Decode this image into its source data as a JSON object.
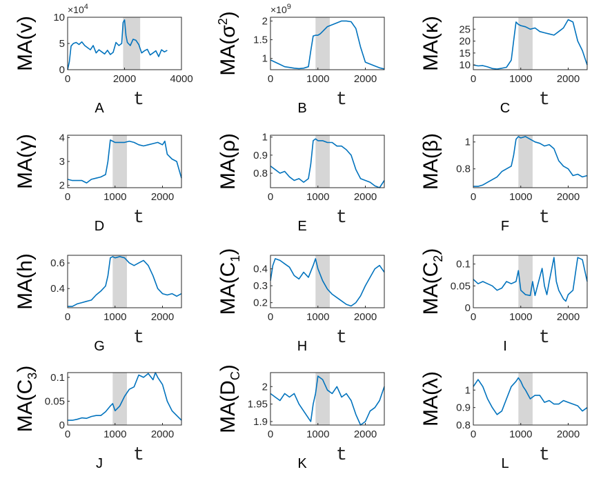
{
  "chart_data": [
    {
      "id": "A",
      "type": "line",
      "panel_label": "A",
      "ylabel": "MA(v)",
      "xlabel": "t",
      "xlim": [
        0,
        4000
      ],
      "ylim": [
        0,
        10
      ],
      "y_multiplier": "×10^4",
      "xticks": [
        0,
        2000,
        4000
      ],
      "xtick_labels": [
        "0",
        "2000",
        "4000"
      ],
      "yticks": [
        0,
        5,
        10
      ],
      "ytick_labels": [
        "0",
        "5",
        "10"
      ],
      "shaded_region": [
        1950,
        2550
      ],
      "x": [
        0,
        60,
        120,
        200,
        300,
        400,
        500,
        600,
        700,
        800,
        900,
        1000,
        1100,
        1200,
        1300,
        1400,
        1500,
        1600,
        1700,
        1800,
        1900,
        1950,
        2000,
        2050,
        2100,
        2200,
        2300,
        2400,
        2500,
        2600,
        2700,
        2800,
        2900,
        3000,
        3100,
        3200,
        3300,
        3400,
        3500
      ],
      "values": [
        0,
        1.5,
        4.5,
        5,
        5.2,
        4.8,
        5.3,
        4.6,
        4.2,
        3.8,
        4.6,
        3.2,
        3.8,
        3.4,
        3.0,
        3.7,
        2.9,
        3.3,
        5.2,
        4.6,
        5.0,
        9.0,
        9.5,
        6.5,
        5.2,
        4.6,
        5.8,
        5.6,
        4.8,
        3.2,
        3.6,
        3.9,
        2.8,
        3.2,
        3.6,
        2.5,
        3.8,
        3.4,
        3.7
      ]
    },
    {
      "id": "B",
      "type": "line",
      "panel_label": "B",
      "ylabel": "MA(σ²)",
      "xlabel": "t",
      "xlim": [
        0,
        2400
      ],
      "ylim": [
        0.7,
        2.1
      ],
      "y_multiplier": "×10^9",
      "xticks": [
        0,
        1000,
        2000
      ],
      "xtick_labels": [
        "0",
        "1000",
        "2000"
      ],
      "yticks": [
        1,
        1.5,
        2
      ],
      "ytick_labels": [
        "1",
        "1.5",
        "2"
      ],
      "shaded_region": [
        950,
        1250
      ],
      "x": [
        0,
        100,
        200,
        300,
        400,
        500,
        600,
        700,
        800,
        850,
        900,
        950,
        1000,
        1050,
        1100,
        1200,
        1300,
        1400,
        1500,
        1600,
        1700,
        1800,
        1900,
        2000,
        2100,
        2200,
        2300,
        2400
      ],
      "values": [
        0.96,
        0.9,
        0.84,
        0.78,
        0.76,
        0.74,
        0.73,
        0.74,
        0.78,
        1.2,
        1.6,
        1.62,
        1.62,
        1.66,
        1.72,
        1.85,
        1.9,
        1.95,
        2.0,
        2.0,
        1.98,
        1.8,
        1.3,
        0.9,
        0.85,
        0.8,
        0.75,
        0.72
      ]
    },
    {
      "id": "C",
      "type": "line",
      "panel_label": "C",
      "ylabel": "MA(κ)",
      "xlabel": "t",
      "xlim": [
        0,
        2400
      ],
      "ylim": [
        8,
        30
      ],
      "xticks": [
        0,
        1000,
        2000
      ],
      "xtick_labels": [
        "0",
        "1000",
        "2000"
      ],
      "yticks": [
        10,
        15,
        20,
        25
      ],
      "ytick_labels": [
        "10",
        "15",
        "20",
        "25"
      ],
      "shaded_region": [
        950,
        1250
      ],
      "x": [
        0,
        100,
        200,
        300,
        400,
        500,
        600,
        700,
        800,
        850,
        900,
        950,
        1000,
        1100,
        1200,
        1300,
        1400,
        1500,
        1600,
        1700,
        1800,
        1900,
        2000,
        2100,
        2200,
        2300,
        2400
      ],
      "values": [
        10,
        9.6,
        9.7,
        9.2,
        8.5,
        8.3,
        8.6,
        9.0,
        12,
        20,
        28,
        27,
        26.5,
        26,
        25,
        25.5,
        24,
        23.5,
        23,
        22.5,
        24,
        25.5,
        29,
        28,
        20,
        16,
        10
      ]
    },
    {
      "id": "D",
      "type": "line",
      "panel_label": "D",
      "ylabel": "MA(γ)",
      "xlabel": "t",
      "xlim": [
        0,
        2400
      ],
      "ylim": [
        1.9,
        4.1
      ],
      "xticks": [
        0,
        1000,
        2000
      ],
      "xtick_labels": [
        "0",
        "1000",
        "2000"
      ],
      "yticks": [
        2,
        3,
        4
      ],
      "ytick_labels": [
        "2",
        "3",
        "4"
      ],
      "shaded_region": [
        950,
        1250
      ],
      "x": [
        0,
        100,
        200,
        300,
        400,
        500,
        600,
        700,
        800,
        850,
        900,
        950,
        1000,
        1100,
        1200,
        1300,
        1400,
        1500,
        1600,
        1700,
        1800,
        1900,
        2000,
        2050,
        2100,
        2200,
        2300,
        2400
      ],
      "values": [
        2.25,
        2.2,
        2.2,
        2.2,
        2.1,
        2.25,
        2.3,
        2.35,
        2.45,
        3.0,
        3.9,
        3.85,
        3.8,
        3.8,
        3.8,
        3.85,
        3.8,
        3.7,
        3.65,
        3.7,
        3.75,
        3.8,
        3.7,
        3.85,
        3.3,
        3.1,
        3.0,
        2.3
      ]
    },
    {
      "id": "E",
      "type": "line",
      "panel_label": "E",
      "ylabel": "MA(ρ)",
      "xlabel": "t",
      "xlim": [
        0,
        2400
      ],
      "ylim": [
        0.72,
        1.01
      ],
      "xticks": [
        0,
        1000,
        2000
      ],
      "xtick_labels": [
        "0",
        "1000",
        "2000"
      ],
      "yticks": [
        0.8,
        0.9,
        1
      ],
      "ytick_labels": [
        "0.8",
        "0.9",
        "1"
      ],
      "shaded_region": [
        950,
        1250
      ],
      "x": [
        0,
        100,
        200,
        300,
        400,
        500,
        600,
        700,
        800,
        850,
        900,
        950,
        1000,
        1100,
        1200,
        1300,
        1400,
        1500,
        1600,
        1700,
        1800,
        1900,
        2000,
        2100,
        2200,
        2300,
        2400
      ],
      "values": [
        0.84,
        0.82,
        0.8,
        0.81,
        0.78,
        0.76,
        0.77,
        0.75,
        0.77,
        0.85,
        0.98,
        0.99,
        0.98,
        0.98,
        0.97,
        0.97,
        0.95,
        0.95,
        0.93,
        0.9,
        0.82,
        0.77,
        0.76,
        0.75,
        0.73,
        0.72,
        0.76
      ]
    },
    {
      "id": "F",
      "type": "line",
      "panel_label": "F",
      "ylabel": "MA(β)",
      "xlabel": "t",
      "xlim": [
        0,
        2400
      ],
      "ylim": [
        0.66,
        1.05
      ],
      "xticks": [
        0,
        1000,
        2000
      ],
      "xtick_labels": [
        "0",
        "1000",
        "2000"
      ],
      "yticks": [
        0.8,
        1
      ],
      "ytick_labels": [
        "0.8",
        "1"
      ],
      "shaded_region": [
        950,
        1250
      ],
      "x": [
        0,
        100,
        200,
        300,
        400,
        500,
        600,
        700,
        800,
        850,
        900,
        950,
        1000,
        1100,
        1200,
        1300,
        1400,
        1500,
        1600,
        1700,
        1800,
        1900,
        2000,
        2100,
        2200,
        2300,
        2400
      ],
      "values": [
        0.67,
        0.67,
        0.68,
        0.7,
        0.72,
        0.74,
        0.78,
        0.8,
        0.82,
        0.9,
        1.02,
        1.04,
        1.03,
        1.04,
        1.02,
        1.0,
        0.99,
        0.97,
        0.98,
        0.95,
        0.86,
        0.82,
        0.8,
        0.75,
        0.76,
        0.74,
        0.75
      ]
    },
    {
      "id": "G",
      "type": "line",
      "panel_label": "G",
      "ylabel": "MA(h)",
      "xlabel": "t",
      "xlim": [
        0,
        2400
      ],
      "ylim": [
        0.25,
        0.66
      ],
      "xticks": [
        0,
        1000,
        2000
      ],
      "xtick_labels": [
        "0",
        "1000",
        "2000"
      ],
      "yticks": [
        0.4,
        0.6
      ],
      "ytick_labels": [
        "0.4",
        "0.6"
      ],
      "shaded_region": [
        950,
        1250
      ],
      "x": [
        0,
        100,
        200,
        300,
        400,
        500,
        600,
        700,
        800,
        850,
        900,
        950,
        1000,
        1100,
        1200,
        1300,
        1400,
        1500,
        1600,
        1700,
        1800,
        1900,
        2000,
        2100,
        2200,
        2300,
        2400
      ],
      "values": [
        0.26,
        0.26,
        0.28,
        0.29,
        0.3,
        0.31,
        0.35,
        0.38,
        0.42,
        0.5,
        0.64,
        0.65,
        0.64,
        0.65,
        0.64,
        0.6,
        0.58,
        0.6,
        0.62,
        0.58,
        0.5,
        0.4,
        0.36,
        0.35,
        0.36,
        0.34,
        0.36
      ]
    },
    {
      "id": "H",
      "type": "line",
      "panel_label": "H",
      "ylabel": "MA(C₁)",
      "xlabel": "t",
      "xlim": [
        0,
        2400
      ],
      "ylim": [
        0.17,
        0.48
      ],
      "xticks": [
        0,
        1000,
        2000
      ],
      "xtick_labels": [
        "0",
        "1000",
        "2000"
      ],
      "yticks": [
        0.2,
        0.3,
        0.4
      ],
      "ytick_labels": [
        "0.2",
        "0.3",
        "0.4"
      ],
      "shaded_region": [
        950,
        1250
      ],
      "x": [
        0,
        50,
        100,
        200,
        300,
        400,
        500,
        600,
        700,
        800,
        900,
        950,
        1000,
        1100,
        1200,
        1300,
        1400,
        1500,
        1600,
        1700,
        1800,
        1900,
        2000,
        2100,
        2200,
        2300,
        2400
      ],
      "values": [
        0.33,
        0.42,
        0.46,
        0.45,
        0.43,
        0.41,
        0.36,
        0.34,
        0.38,
        0.35,
        0.42,
        0.46,
        0.4,
        0.33,
        0.28,
        0.25,
        0.23,
        0.21,
        0.19,
        0.18,
        0.2,
        0.24,
        0.3,
        0.35,
        0.4,
        0.42,
        0.38
      ]
    },
    {
      "id": "I",
      "type": "line",
      "panel_label": "I",
      "ylabel": "MA(C₂)",
      "xlabel": "t",
      "xlim": [
        0,
        2400
      ],
      "ylim": [
        0,
        0.12
      ],
      "xticks": [
        0,
        1000,
        2000
      ],
      "xtick_labels": [
        "0",
        "1000",
        "2000"
      ],
      "yticks": [
        0,
        0.05,
        0.1
      ],
      "ytick_labels": [
        "0",
        "0.05",
        "0.1"
      ],
      "shaded_region": [
        950,
        1250
      ],
      "x": [
        0,
        100,
        200,
        300,
        400,
        500,
        600,
        700,
        800,
        900,
        950,
        1000,
        1100,
        1200,
        1250,
        1300,
        1400,
        1450,
        1500,
        1550,
        1600,
        1700,
        1750,
        1800,
        1900,
        1950,
        2000,
        2100,
        2200,
        2300,
        2400
      ],
      "values": [
        0.065,
        0.055,
        0.06,
        0.055,
        0.05,
        0.04,
        0.045,
        0.06,
        0.055,
        0.06,
        0.085,
        0.04,
        0.03,
        0.028,
        0.06,
        0.028,
        0.07,
        0.09,
        0.05,
        0.03,
        0.06,
        0.115,
        0.06,
        0.04,
        0.02,
        0.015,
        0.03,
        0.04,
        0.115,
        0.11,
        0.06
      ]
    },
    {
      "id": "J",
      "type": "line",
      "panel_label": "J",
      "ylabel": "MA(C₃)",
      "xlabel": "t",
      "xlim": [
        0,
        2400
      ],
      "ylim": [
        0,
        0.11
      ],
      "xticks": [
        0,
        1000,
        2000
      ],
      "xtick_labels": [
        "0",
        "1000",
        "2000"
      ],
      "yticks": [
        0,
        0.05,
        0.1
      ],
      "ytick_labels": [
        "0",
        "0.05",
        "0.1"
      ],
      "shaded_region": [
        950,
        1250
      ],
      "x": [
        0,
        100,
        200,
        300,
        400,
        500,
        600,
        700,
        800,
        900,
        950,
        1000,
        1100,
        1200,
        1300,
        1400,
        1500,
        1600,
        1700,
        1800,
        1850,
        1900,
        2000,
        2100,
        2200,
        2300,
        2400
      ],
      "values": [
        0.01,
        0.01,
        0.012,
        0.015,
        0.014,
        0.018,
        0.02,
        0.02,
        0.028,
        0.04,
        0.045,
        0.03,
        0.04,
        0.06,
        0.075,
        0.08,
        0.105,
        0.1,
        0.108,
        0.095,
        0.11,
        0.1,
        0.085,
        0.05,
        0.03,
        0.02,
        0.01
      ]
    },
    {
      "id": "K",
      "type": "line",
      "panel_label": "K",
      "ylabel": "MA(D_C)",
      "xlabel": "t",
      "xlim": [
        0,
        2400
      ],
      "ylim": [
        1.89,
        2.04
      ],
      "xticks": [
        0,
        1000,
        2000
      ],
      "xtick_labels": [
        "0",
        "1000",
        "2000"
      ],
      "yticks": [
        1.9,
        1.95,
        2
      ],
      "ytick_labels": [
        "1.9",
        "1.95",
        "2"
      ],
      "shaded_region": [
        950,
        1250
      ],
      "x": [
        0,
        100,
        200,
        300,
        400,
        500,
        600,
        700,
        800,
        850,
        900,
        950,
        1000,
        1100,
        1200,
        1300,
        1400,
        1500,
        1600,
        1700,
        1800,
        1900,
        2000,
        2100,
        2200,
        2300,
        2400
      ],
      "values": [
        1.98,
        1.97,
        1.96,
        1.98,
        1.97,
        1.98,
        1.95,
        1.93,
        1.91,
        1.9,
        1.95,
        1.98,
        2.03,
        2.02,
        1.99,
        1.98,
        2.0,
        1.97,
        1.98,
        1.96,
        1.92,
        1.89,
        1.9,
        1.93,
        1.94,
        1.96,
        2.0
      ]
    },
    {
      "id": "L",
      "type": "line",
      "panel_label": "L",
      "ylabel": "MA(λ)",
      "xlabel": "t",
      "xlim": [
        0,
        2400
      ],
      "ylim": [
        0.8,
        1.1
      ],
      "xticks": [
        0,
        1000,
        2000
      ],
      "xtick_labels": [
        "0",
        "1000",
        "2000"
      ],
      "yticks": [
        0.8,
        0.9,
        1
      ],
      "ytick_labels": [
        "0.8",
        "0.9",
        "1"
      ],
      "shaded_region": [
        950,
        1250
      ],
      "x": [
        0,
        100,
        200,
        300,
        400,
        500,
        600,
        700,
        800,
        900,
        950,
        1000,
        1050,
        1100,
        1200,
        1300,
        1400,
        1500,
        1600,
        1700,
        1800,
        1900,
        2000,
        2100,
        2200,
        2300,
        2400
      ],
      "values": [
        1.02,
        1.06,
        1.02,
        0.95,
        0.9,
        0.86,
        0.88,
        0.95,
        1.02,
        1.05,
        1.07,
        1.05,
        1.02,
        1.0,
        0.95,
        0.97,
        0.97,
        0.93,
        0.94,
        0.92,
        0.92,
        0.94,
        0.93,
        0.92,
        0.91,
        0.88,
        0.9
      ]
    }
  ]
}
